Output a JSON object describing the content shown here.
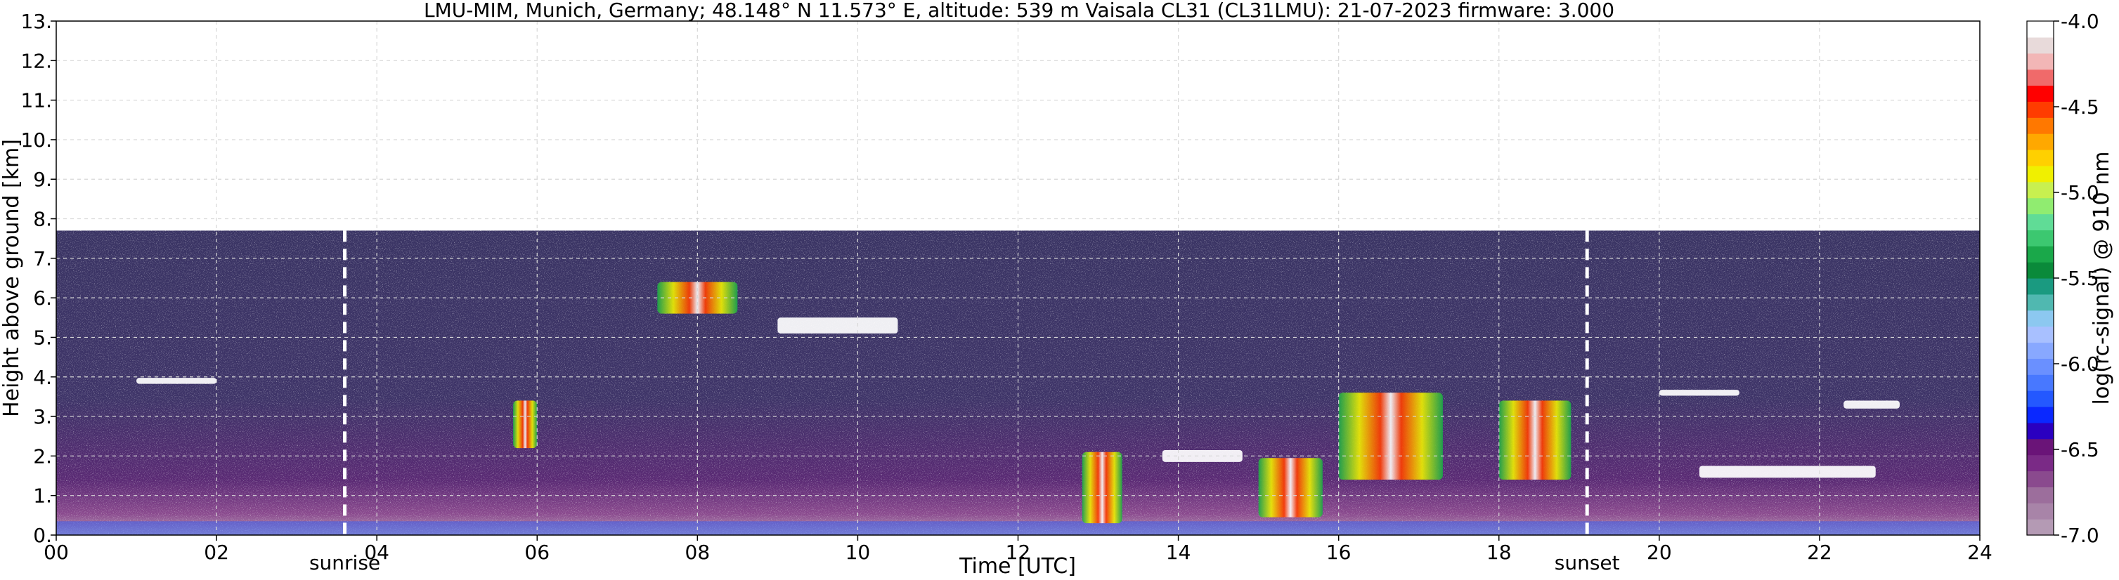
{
  "chart_data": {
    "type": "heatmap",
    "title": "LMU-MIM, Munich, Germany; 48.148° N 11.573° E, altitude: 539 m    Vaisala CL31 (CL31LMU): 21-07-2023    firmware: 3.000",
    "xlabel": "Time [UTC]",
    "ylabel": "Height above ground [km]",
    "xlim": [
      0,
      24
    ],
    "ylim": [
      0,
      13
    ],
    "x_ticks": [
      0,
      2,
      4,
      6,
      8,
      10,
      12,
      14,
      16,
      18,
      20,
      22,
      24
    ],
    "x_tick_labels": [
      "00",
      "02",
      "04",
      "06",
      "08",
      "10",
      "12",
      "14",
      "16",
      "18",
      "20",
      "22",
      "24"
    ],
    "y_ticks": [
      0,
      1,
      2,
      3,
      4,
      5,
      6,
      7,
      8,
      9,
      10,
      11,
      12,
      13
    ],
    "y_tick_labels": [
      "0.",
      "1.",
      "2.",
      "3.",
      "4.",
      "5.",
      "6.",
      "7.",
      "8.",
      "9.",
      "10.",
      "11.",
      "12.",
      "13."
    ],
    "grid": true,
    "data_top_km": 7.7,
    "annotations": [
      {
        "label": "sunrise",
        "x": 3.6
      },
      {
        "label": "sunset",
        "x": 19.1
      }
    ],
    "colorbar": {
      "label": "log(rc-signal) @ 910 nm",
      "range": [
        -7.0,
        -4.0
      ],
      "ticks": [
        -7.0,
        -6.5,
        -6.0,
        -5.5,
        -5.0,
        -4.5,
        -4.0
      ],
      "tick_labels": [
        "-7.0",
        "-6.5",
        "-6.0",
        "-5.5",
        "-5.0",
        "-4.5",
        "-4.0"
      ],
      "colors": [
        "#b49ab4",
        "#a884a8",
        "#9c6e9c",
        "#8a4a8e",
        "#7a2a86",
        "#6a1478",
        "#2a00c0",
        "#0a28ff",
        "#2458ff",
        "#4878ff",
        "#6a90ff",
        "#88a8ff",
        "#a8c0ff",
        "#8cc8f0",
        "#50b8b0",
        "#1a9a80",
        "#0a8a3a",
        "#1aa84a",
        "#3cc870",
        "#60dc96",
        "#90ec70",
        "#c8f050",
        "#f0f000",
        "#ffd000",
        "#ffa800",
        "#ff7800",
        "#ff3c00",
        "#ff0000",
        "#f06a6a",
        "#f2b6b6",
        "#e8dada",
        "#ffffff"
      ]
    },
    "features": [
      {
        "name": "clouds",
        "x_range": [
          1.0,
          2.0
        ],
        "height_km": 3.9,
        "thickness_km": 0.15
      },
      {
        "name": "clouds",
        "x_range": [
          5.7,
          6.0
        ],
        "height_km": 2.8,
        "thickness_km": 1.2
      },
      {
        "name": "clouds",
        "x_range": [
          7.5,
          8.5
        ],
        "height_km": 6.0,
        "thickness_km": 0.8
      },
      {
        "name": "clouds",
        "x_range": [
          9.0,
          10.5
        ],
        "height_km": 5.3,
        "thickness_km": 0.4
      },
      {
        "name": "clouds",
        "x_range": [
          12.8,
          13.3
        ],
        "height_km": 1.2,
        "thickness_km": 1.8
      },
      {
        "name": "clouds",
        "x_range": [
          13.8,
          14.8
        ],
        "height_km": 2.0,
        "thickness_km": 0.3
      },
      {
        "name": "clouds",
        "x_range": [
          15.0,
          15.8
        ],
        "height_km": 1.2,
        "thickness_km": 1.5
      },
      {
        "name": "clouds",
        "x_range": [
          16.0,
          17.3
        ],
        "height_km": 2.5,
        "thickness_km": 2.2
      },
      {
        "name": "clouds",
        "x_range": [
          18.0,
          18.9
        ],
        "height_km": 2.4,
        "thickness_km": 2.0
      },
      {
        "name": "clouds",
        "x_range": [
          20.0,
          21.0
        ],
        "height_km": 3.6,
        "thickness_km": 0.15
      },
      {
        "name": "clouds",
        "x_range": [
          20.5,
          22.7
        ],
        "height_km": 1.6,
        "thickness_km": 0.3
      },
      {
        "name": "clouds",
        "x_range": [
          22.3,
          23.0
        ],
        "height_km": 3.3,
        "thickness_km": 0.2
      }
    ]
  }
}
